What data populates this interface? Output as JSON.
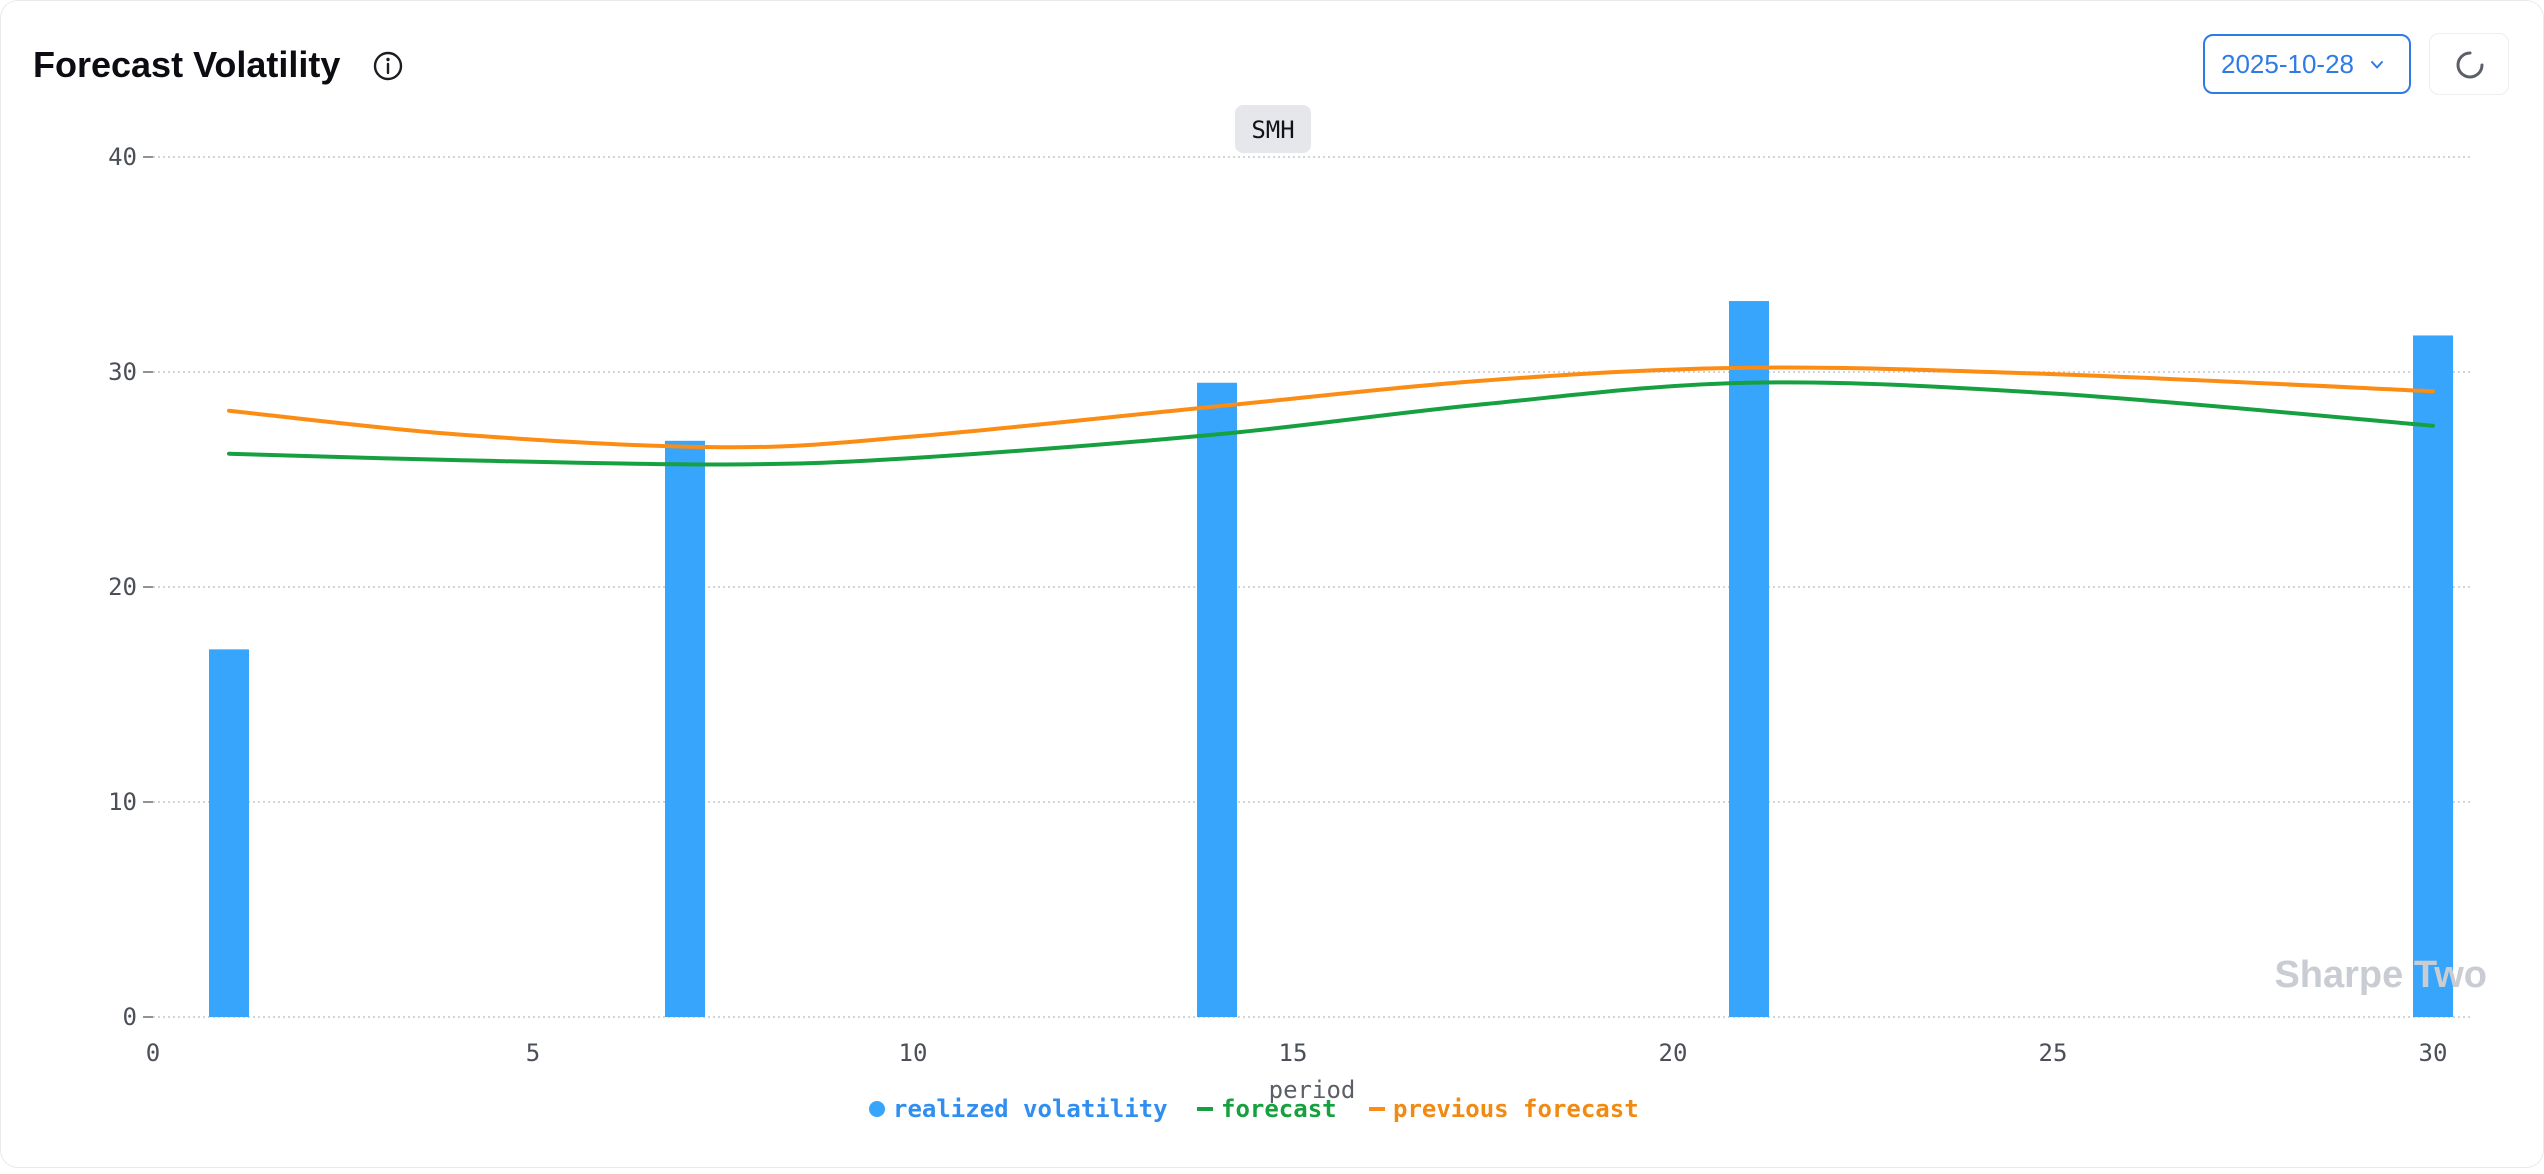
{
  "header": {
    "title": "Forecast Volatility",
    "info_icon": "info-icon",
    "date_value": "2025-10-28",
    "date_chevron_icon": "chevron-down-icon",
    "refresh_icon": "loading-spinner-icon"
  },
  "chart_data": {
    "type": "bar",
    "title": "SMH",
    "xlabel": "period",
    "ylabel": "",
    "xlim": [
      0,
      30.5
    ],
    "ylim": [
      0,
      40
    ],
    "x_ticks": [
      0,
      5,
      10,
      15,
      20,
      25,
      30
    ],
    "y_ticks": [
      0,
      10,
      20,
      30,
      40
    ],
    "grid": true,
    "legend_placement": "bottom-center",
    "watermark": "Sharpe Two",
    "bars": {
      "name": "realized volatility",
      "color": "#37a5fb",
      "x": [
        1,
        7,
        14,
        21,
        30
      ],
      "values": [
        17.1,
        26.8,
        29.5,
        33.3,
        31.7
      ]
    },
    "series": [
      {
        "name": "forecast",
        "type": "line",
        "color": "#17a03f",
        "x": [
          1,
          4,
          7.5,
          10,
          14,
          17.5,
          21,
          25,
          30
        ],
        "values": [
          26.2,
          25.9,
          25.7,
          26.0,
          27.1,
          28.5,
          29.5,
          29.0,
          27.5
        ]
      },
      {
        "name": "previous forecast",
        "type": "line",
        "color": "#fb8c14",
        "x": [
          1,
          4,
          7.5,
          10,
          14,
          17.5,
          21,
          25,
          30
        ],
        "values": [
          28.2,
          27.1,
          26.5,
          27.0,
          28.4,
          29.6,
          30.2,
          29.9,
          29.1
        ]
      }
    ]
  }
}
